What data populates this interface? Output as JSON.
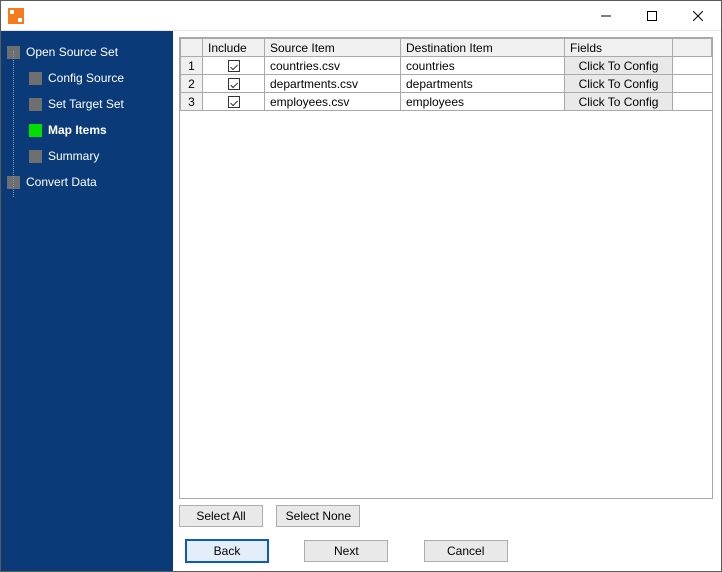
{
  "colors": {
    "sidebar_bg": "#0a3b78",
    "window_border": "#5a5a5a",
    "tree_box_default": "#6f6f6f",
    "tree_box_active": "#00e000",
    "grid_border": "#a9a9a9",
    "header_bg": "#f0f0f0",
    "button_bg": "#e9e9e9",
    "primary_border": "#0a5ac0",
    "app_icon": "#f47c20"
  },
  "nav_tree": {
    "items": [
      {
        "label": "Open Source Set",
        "level": "root",
        "active": false
      },
      {
        "label": "Config Source",
        "level": "child",
        "active": false
      },
      {
        "label": "Set Target Set",
        "level": "child",
        "active": false
      },
      {
        "label": "Map Items",
        "level": "child",
        "active": true
      },
      {
        "label": "Summary",
        "level": "child",
        "active": false
      },
      {
        "label": "Convert Data",
        "level": "root",
        "active": false
      }
    ]
  },
  "grid": {
    "headers": {
      "include": "Include",
      "source_item": "Source Item",
      "destination_item": "Destination Item",
      "fields": "Fields"
    },
    "config_button_label": "Click To Config",
    "rows": [
      {
        "num": "1",
        "include": true,
        "source": "countries.csv",
        "destination": "countries"
      },
      {
        "num": "2",
        "include": true,
        "source": "departments.csv",
        "destination": "departments"
      },
      {
        "num": "3",
        "include": true,
        "source": "employees.csv",
        "destination": "employees"
      }
    ]
  },
  "selection": {
    "select_all": "Select All",
    "select_none": "Select None"
  },
  "nav_buttons": {
    "back": "Back",
    "next": "Next",
    "cancel": "Cancel"
  }
}
